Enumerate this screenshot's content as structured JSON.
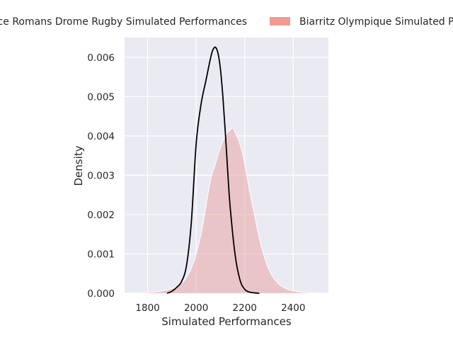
{
  "chart_data": {
    "type": "area",
    "xlabel": "Simulated Performances",
    "ylabel": "Density",
    "xlim": [
      1705,
      2545
    ],
    "ylim": [
      0,
      0.0065
    ],
    "xticks": [
      1800,
      2000,
      2200,
      2400
    ],
    "yticks": [
      0.0,
      0.001,
      0.002,
      0.003,
      0.004,
      0.005,
      0.006
    ],
    "ytick_labels": [
      "0.000",
      "0.001",
      "0.002",
      "0.003",
      "0.004",
      "0.005",
      "0.006"
    ],
    "grid": true,
    "legend_placement": "top (above plot)",
    "series": [
      {
        "name": "Valence Romans Drome Rugby Simulated Performances",
        "style": "line",
        "color": "#000000",
        "x": [
          1880,
          1900,
          1920,
          1940,
          1960,
          1980,
          2000,
          2020,
          2040,
          2060,
          2070,
          2080,
          2090,
          2100,
          2110,
          2120,
          2130,
          2140,
          2160,
          2180,
          2200,
          2220,
          2240,
          2260
        ],
        "y": [
          0.0,
          5e-05,
          0.00015,
          0.0003,
          0.0007,
          0.0018,
          0.0038,
          0.0048,
          0.0054,
          0.006,
          0.0062,
          0.00625,
          0.0061,
          0.0057,
          0.005,
          0.0041,
          0.0031,
          0.0022,
          0.001,
          0.00035,
          0.0001,
          3e-05,
          1e-05,
          0.0
        ]
      },
      {
        "name": "Biarritz Olympique Simulated Performances",
        "style": "area",
        "color": "#e8a0a0",
        "legend_color": "#f09a94",
        "x": [
          1725,
          1800,
          1850,
          1900,
          1930,
          1960,
          1990,
          2020,
          2040,
          2060,
          2080,
          2100,
          2120,
          2140,
          2150,
          2160,
          2180,
          2200,
          2220,
          2240,
          2260,
          2280,
          2300,
          2330,
          2360,
          2400,
          2450,
          2510
        ],
        "y": [
          0.0,
          2e-05,
          5e-05,
          0.00012,
          0.0002,
          0.0004,
          0.0008,
          0.0015,
          0.0022,
          0.0029,
          0.0033,
          0.0037,
          0.004,
          0.00415,
          0.0042,
          0.0041,
          0.0038,
          0.0033,
          0.0026,
          0.002,
          0.0014,
          0.00095,
          0.0006,
          0.0003,
          0.00015,
          6e-05,
          2e-05,
          0.0
        ]
      }
    ]
  },
  "colors": {
    "plot_background": "#eaeaf2",
    "grid": "#ffffff",
    "text": "#262626"
  }
}
